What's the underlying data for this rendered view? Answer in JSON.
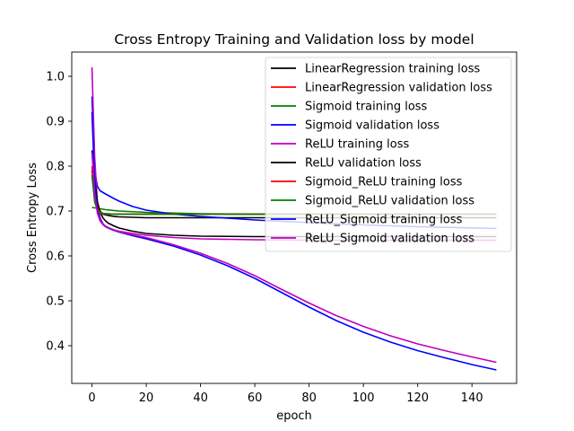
{
  "chart_data": {
    "type": "line",
    "title": "Cross Entropy Training and Validation loss by model",
    "xlabel": "epoch",
    "ylabel": "Cross Entropy Loss",
    "xlim": [
      -7.45,
      156.45
    ],
    "ylim": [
      0.316,
      1.054
    ],
    "xticks": [
      0,
      20,
      40,
      60,
      80,
      100,
      120,
      140
    ],
    "yticks": [
      0.4,
      0.5,
      0.6,
      0.7,
      0.8,
      0.9,
      1.0
    ],
    "grid": false,
    "legend_position": "upper right",
    "series": [
      {
        "name": "LinearRegression training loss",
        "color": "#000000",
        "x": [
          0,
          1,
          2,
          3,
          4,
          6,
          8,
          10,
          15,
          20,
          30,
          40,
          60,
          80,
          100,
          120,
          149
        ],
        "y": [
          0.79,
          0.745,
          0.715,
          0.7,
          0.693,
          0.69,
          0.688,
          0.687,
          0.686,
          0.685,
          0.685,
          0.685,
          0.685,
          0.685,
          0.685,
          0.685,
          0.685
        ]
      },
      {
        "name": "LinearRegression validation loss",
        "color": "#ff0000",
        "x": [
          0,
          1,
          2,
          3,
          4,
          6,
          8,
          10,
          20,
          40,
          60,
          80,
          100,
          120,
          149
        ],
        "y": [
          0.78,
          0.73,
          0.708,
          0.698,
          0.695,
          0.694,
          0.693,
          0.693,
          0.693,
          0.693,
          0.693,
          0.693,
          0.693,
          0.693,
          0.693
        ]
      },
      {
        "name": "Sigmoid training loss",
        "color": "#008000",
        "x": [
          0,
          2,
          5,
          10,
          20,
          40,
          60,
          80,
          100,
          120,
          149
        ],
        "y": [
          0.708,
          0.706,
          0.703,
          0.7,
          0.697,
          0.694,
          0.693,
          0.693,
          0.693,
          0.693,
          0.693
        ]
      },
      {
        "name": "Sigmoid validation loss",
        "color": "#0000ff",
        "x": [
          0,
          1,
          2,
          3,
          5,
          8,
          10,
          15,
          20,
          30,
          40,
          60,
          80,
          100,
          120,
          149
        ],
        "y": [
          0.955,
          0.79,
          0.755,
          0.745,
          0.738,
          0.728,
          0.722,
          0.71,
          0.702,
          0.693,
          0.688,
          0.68,
          0.674,
          0.669,
          0.665,
          0.661
        ]
      },
      {
        "name": "ReLU training loss",
        "color": "#bf00bf",
        "x": [
          0,
          1,
          2,
          3,
          4,
          5,
          6,
          8,
          10,
          15,
          20,
          30,
          40,
          60,
          80,
          100,
          120,
          149
        ],
        "y": [
          1.02,
          0.82,
          0.72,
          0.685,
          0.672,
          0.666,
          0.663,
          0.658,
          0.655,
          0.65,
          0.646,
          0.641,
          0.638,
          0.636,
          0.635,
          0.635,
          0.635,
          0.635
        ]
      },
      {
        "name": "ReLU validation loss",
        "color": "#000000",
        "x": [
          0,
          1,
          2,
          3,
          4,
          5,
          6,
          8,
          10,
          15,
          20,
          30,
          40,
          60,
          80,
          100,
          120,
          149
        ],
        "y": [
          0.835,
          0.77,
          0.72,
          0.698,
          0.685,
          0.678,
          0.673,
          0.667,
          0.662,
          0.655,
          0.65,
          0.646,
          0.644,
          0.643,
          0.643,
          0.643,
          0.643,
          0.643
        ]
      },
      {
        "name": "Sigmoid_ReLU training loss",
        "color": "#ff0000",
        "x": [
          0,
          1,
          2,
          3,
          4,
          6,
          8,
          10,
          20,
          40,
          60,
          80,
          100,
          120,
          149
        ],
        "y": [
          0.8,
          0.73,
          0.705,
          0.697,
          0.694,
          0.693,
          0.693,
          0.693,
          0.693,
          0.693,
          0.693,
          0.693,
          0.693,
          0.693,
          0.693
        ]
      },
      {
        "name": "Sigmoid_ReLU validation loss",
        "color": "#008000",
        "x": [
          0,
          1,
          2,
          3,
          4,
          6,
          8,
          10,
          20,
          40,
          60,
          80,
          100,
          120,
          149
        ],
        "y": [
          0.78,
          0.72,
          0.702,
          0.696,
          0.694,
          0.693,
          0.693,
          0.693,
          0.693,
          0.693,
          0.693,
          0.693,
          0.693,
          0.693,
          0.693
        ]
      },
      {
        "name": "ReLU_Sigmoid training loss",
        "color": "#0000ff",
        "x": [
          0,
          1,
          2,
          3,
          4,
          5,
          6,
          8,
          10,
          15,
          20,
          25,
          30,
          40,
          50,
          60,
          70,
          80,
          90,
          100,
          110,
          120,
          130,
          140,
          149
        ],
        "y": [
          0.92,
          0.76,
          0.7,
          0.68,
          0.67,
          0.665,
          0.662,
          0.657,
          0.653,
          0.645,
          0.638,
          0.63,
          0.622,
          0.602,
          0.578,
          0.55,
          0.518,
          0.486,
          0.456,
          0.43,
          0.408,
          0.389,
          0.373,
          0.358,
          0.346
        ]
      },
      {
        "name": "ReLU_Sigmoid validation loss",
        "color": "#bf00bf",
        "x": [
          0,
          1,
          2,
          3,
          4,
          5,
          6,
          8,
          10,
          15,
          20,
          25,
          30,
          40,
          50,
          60,
          70,
          80,
          90,
          100,
          110,
          120,
          130,
          140,
          149
        ],
        "y": [
          0.83,
          0.74,
          0.695,
          0.678,
          0.67,
          0.666,
          0.663,
          0.658,
          0.654,
          0.647,
          0.641,
          0.633,
          0.625,
          0.606,
          0.583,
          0.556,
          0.525,
          0.495,
          0.467,
          0.443,
          0.422,
          0.404,
          0.389,
          0.375,
          0.363
        ]
      }
    ]
  }
}
